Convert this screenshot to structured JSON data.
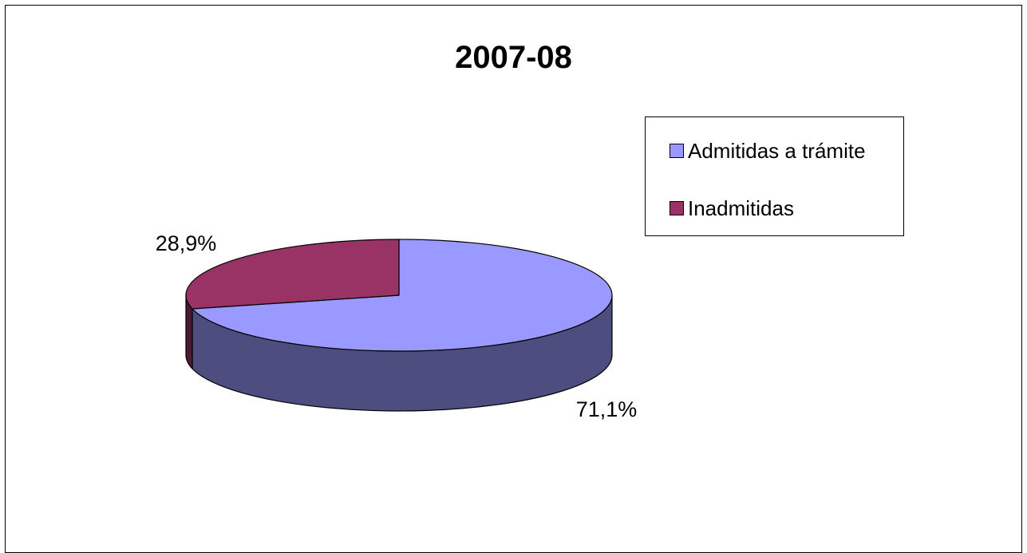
{
  "chart_data": {
    "type": "pie",
    "title": "2007-08",
    "categories": [
      "Admitidas a trámite",
      "Inadmitidas"
    ],
    "values": [
      71.1,
      28.9
    ],
    "data_labels": [
      "71,1%",
      "28,9%"
    ],
    "colors": {
      "Admitidas a trámite": {
        "top": "#9999ff",
        "side": "#4d4d80"
      },
      "Inadmitidas": {
        "top": "#993366",
        "side": "#4d1a33"
      }
    },
    "legend_placement": "right",
    "three_d": true
  }
}
